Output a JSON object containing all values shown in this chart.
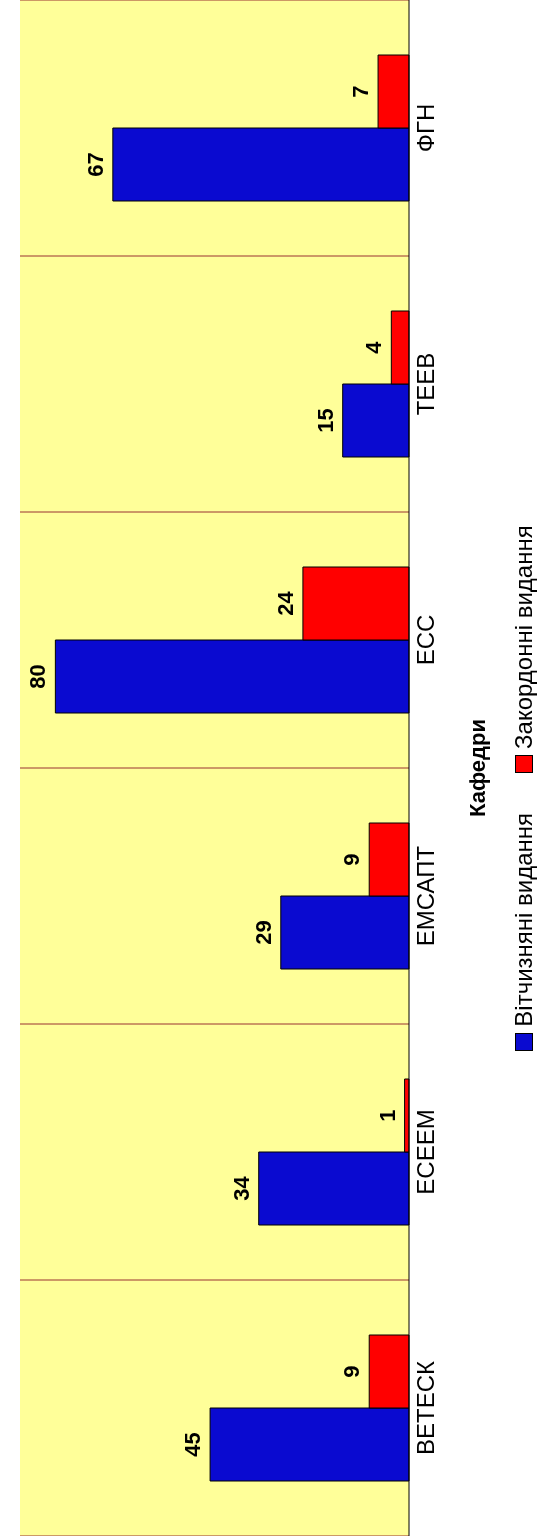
{
  "chart_data": {
    "type": "bar",
    "orientation": "horizontal",
    "ylabel": "Кафедри",
    "categories": [
      "ФГН",
      "ТЕЕВ",
      "ЕСС",
      "ЕМСАПТ",
      "ЕСЕЕМ",
      "ВЕТЕСК"
    ],
    "series": [
      {
        "name": "Вітчизняні видання",
        "color": "#0a0ad0",
        "values": [
          67,
          15,
          80,
          29,
          34,
          45
        ]
      },
      {
        "name": "Закордонні видання",
        "color": "#ff0000",
        "values": [
          7,
          4,
          24,
          9,
          1,
          9
        ]
      }
    ],
    "data_labels": true,
    "grid": "y",
    "legend": "right"
  }
}
